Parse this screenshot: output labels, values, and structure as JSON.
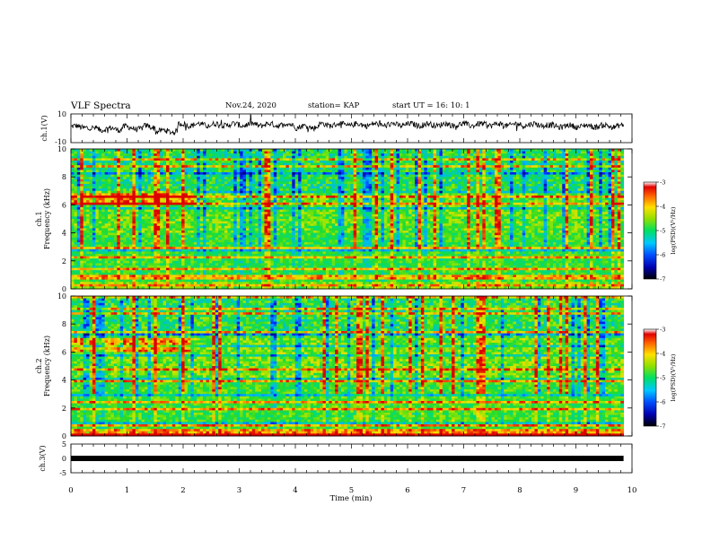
{
  "header": {
    "title": "VLF Spectra",
    "date": "Nov.24, 2020",
    "station": "station= KAP",
    "start": "start  UT =   16: 10: 1"
  },
  "chart_data": [
    {
      "type": "line",
      "name": "ch1-waveform",
      "ylabel": "ch.1(V)",
      "ylim": [
        -10,
        10
      ],
      "yticks": [
        "10",
        "-10"
      ],
      "xlim": [
        0,
        10
      ],
      "x_coverage_max": 9.85,
      "description_level": "noisy signal around 1 V, dips near 0.5 min and 1.7 min, higher (≈3 V) after 2 min"
    },
    {
      "type": "heatmap",
      "name": "ch1-spectrogram",
      "ylabel": "ch.1",
      "ylabel2": "Frequency (kHz)",
      "ylim": [
        0,
        10
      ],
      "yticks": [
        "0",
        "2",
        "4",
        "6",
        "8",
        "10"
      ],
      "xlim": [
        0,
        10
      ],
      "colorbar": {
        "label": "log(PSD)(V²/Hz)",
        "range": [
          -7,
          -3
        ],
        "ticks": [
          "-3",
          "-4",
          "-5",
          "-6",
          "-7"
        ]
      }
    },
    {
      "type": "heatmap",
      "name": "ch2-spectrogram",
      "ylabel": "ch.2",
      "ylabel2": "Frequency (kHz)",
      "ylim": [
        0,
        10
      ],
      "yticks": [
        "0",
        "2",
        "4",
        "6",
        "8",
        "10"
      ],
      "xlim": [
        0,
        10
      ],
      "colorbar": {
        "label": "log(PSD)(V²/Hz)",
        "range": [
          -7,
          -3
        ],
        "ticks": [
          "-3",
          "-4",
          "-5",
          "-6",
          "-7"
        ]
      }
    },
    {
      "type": "line",
      "name": "ch3-signal",
      "ylabel": "ch.3(V)",
      "ylim": [
        -5,
        5
      ],
      "yticks": [
        "5",
        "0",
        "-5"
      ],
      "xlim": [
        0,
        10
      ],
      "xlabel": "Time  (min)",
      "xticks": [
        "0",
        "1",
        "2",
        "3",
        "4",
        "5",
        "6",
        "7",
        "8",
        "9",
        "10"
      ],
      "level": 0
    }
  ]
}
